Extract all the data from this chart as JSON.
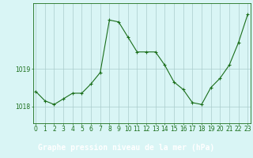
{
  "hours": [
    0,
    1,
    2,
    3,
    4,
    5,
    6,
    7,
    8,
    9,
    10,
    11,
    12,
    13,
    14,
    15,
    16,
    17,
    18,
    19,
    20,
    21,
    22,
    23
  ],
  "pressure": [
    1018.4,
    1018.15,
    1018.05,
    1018.2,
    1018.35,
    1018.35,
    1018.6,
    1018.9,
    1020.3,
    1020.25,
    1019.85,
    1019.45,
    1019.45,
    1019.45,
    1019.1,
    1018.65,
    1018.45,
    1018.1,
    1018.05,
    1018.5,
    1018.75,
    1019.1,
    1019.7,
    1020.45
  ],
  "line_color": "#1a6e1a",
  "marker": "+",
  "marker_size": 3,
  "bg_color": "#d9f5f5",
  "grid_color": "#aacccc",
  "yticks": [
    1018,
    1019
  ],
  "xticks": [
    0,
    1,
    2,
    3,
    4,
    5,
    6,
    7,
    8,
    9,
    10,
    11,
    12,
    13,
    14,
    15,
    16,
    17,
    18,
    19,
    20,
    21,
    22,
    23
  ],
  "xlabel": "Graphe pression niveau de la mer (hPa)",
  "xlabel_fontsize": 7,
  "tick_fontsize": 5.5,
  "ylim": [
    1017.55,
    1020.75
  ],
  "xlim": [
    -0.3,
    23.3
  ],
  "line_color_dark": "#1a5c1a",
  "label_bg": "#3a7a3a",
  "label_text_color": "#ffffff"
}
